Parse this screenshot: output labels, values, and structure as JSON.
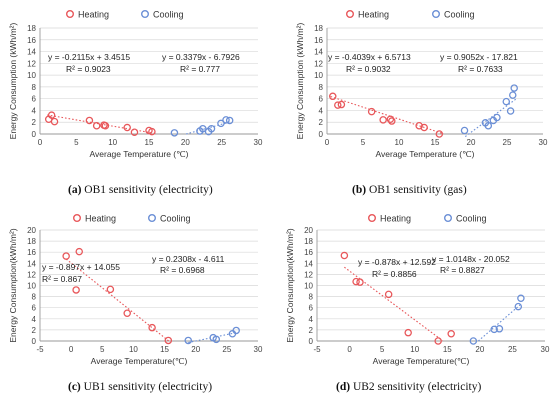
{
  "colors": {
    "heating": "#e8575a",
    "cooling": "#6b8fd6",
    "grid": "#d9d9d9",
    "axis": "#9a9a9a"
  },
  "chart_data": [
    {
      "type": "scatter",
      "id": "a",
      "caption_tag": "(a)",
      "caption_text": " OB1 sensitivity (electricity)",
      "xlabel": "Average Temperature (℃)",
      "ylabel": "Energy Consumption (kWh/m²)",
      "xlim": [
        0,
        30
      ],
      "xticks": [
        0,
        5,
        10,
        15,
        20,
        25,
        30
      ],
      "ylim": [
        0,
        18
      ],
      "yticks": [
        0,
        2,
        4,
        6,
        8,
        10,
        12,
        14,
        16,
        18
      ],
      "grid": true,
      "legend_position": "top",
      "series": [
        {
          "name": "Heating",
          "points": [
            [
              1.2,
              2.5
            ],
            [
              1.6,
              3.2
            ],
            [
              2.0,
              2.1
            ],
            [
              6.8,
              2.3
            ],
            [
              7.8,
              1.4
            ],
            [
              8.8,
              1.5
            ],
            [
              9.0,
              1.4
            ],
            [
              12.0,
              1.1
            ],
            [
              13.0,
              0.3
            ],
            [
              15.0,
              0.6
            ],
            [
              15.4,
              0.4
            ]
          ]
        },
        {
          "name": "Cooling",
          "points": [
            [
              18.5,
              0.2
            ],
            [
              22.0,
              0.5
            ],
            [
              22.4,
              0.9
            ],
            [
              23.2,
              0.4
            ],
            [
              23.6,
              0.9
            ],
            [
              24.9,
              1.8
            ],
            [
              25.6,
              2.4
            ],
            [
              26.1,
              2.3
            ]
          ]
        }
      ],
      "trendlines": [
        {
          "series": "Heating",
          "slope": -0.2115,
          "intercept": 3.4515,
          "x": [
            1,
            16
          ],
          "equation": "y = -0.2115x + 3.4515",
          "r2": "R² = 0.9023"
        },
        {
          "series": "Cooling",
          "slope": 0.3379,
          "intercept": -6.7926,
          "x": [
            20.1,
            26.3
          ],
          "equation": "y = 0.3379x - 6.7926",
          "r2": "R² = 0.777"
        }
      ]
    },
    {
      "type": "scatter",
      "id": "b",
      "caption_tag": "(b)",
      "caption_text": " OB1 sensitivity (gas)",
      "xlabel": "Average Temperature (℃)",
      "ylabel": "Energy Consumption (kWh/m²)",
      "xlim": [
        0,
        30
      ],
      "xticks": [
        0,
        5,
        10,
        15,
        20,
        25,
        30
      ],
      "ylim": [
        0,
        18
      ],
      "yticks": [
        0,
        2,
        4,
        6,
        8,
        10,
        12,
        14,
        16,
        18
      ],
      "grid": true,
      "legend_position": "top",
      "series": [
        {
          "name": "Heating",
          "points": [
            [
              0.8,
              6.4
            ],
            [
              1.5,
              4.9
            ],
            [
              2.0,
              5.0
            ],
            [
              6.2,
              3.8
            ],
            [
              7.8,
              2.4
            ],
            [
              8.8,
              2.5
            ],
            [
              9.0,
              2.2
            ],
            [
              12.8,
              1.4
            ],
            [
              13.5,
              1.1
            ],
            [
              15.6,
              0.0
            ]
          ]
        },
        {
          "name": "Cooling",
          "points": [
            [
              19.1,
              0.6
            ],
            [
              22.0,
              1.9
            ],
            [
              22.4,
              1.4
            ],
            [
              23.1,
              2.3
            ],
            [
              23.6,
              2.8
            ],
            [
              24.9,
              5.5
            ],
            [
              25.5,
              3.9
            ],
            [
              25.8,
              6.6
            ],
            [
              26.0,
              7.8
            ]
          ]
        }
      ],
      "trendlines": [
        {
          "series": "Heating",
          "slope": -0.4039,
          "intercept": 6.5713,
          "x": [
            0.5,
            16.2
          ],
          "equation": "y = -0.4039x + 6.5713",
          "r2": "R² = 0.9032"
        },
        {
          "series": "Cooling",
          "slope": 0.9052,
          "intercept": -17.821,
          "x": [
            19.2,
            26.3
          ],
          "equation": "y = 0.9052x - 17.821",
          "r2": "R² = 0.7633"
        }
      ]
    },
    {
      "type": "scatter",
      "id": "c",
      "caption_tag": "(c)",
      "caption_text": " UB1 sensitivity (electricity)",
      "xlabel": "Average Temperature(℃)",
      "ylabel": "Energy Consumption(kWh/m²)",
      "xlim": [
        -5,
        30
      ],
      "xticks": [
        -5,
        0,
        5,
        10,
        15,
        20,
        25,
        30
      ],
      "ylim": [
        0,
        20
      ],
      "yticks": [
        0,
        2,
        4,
        6,
        8,
        10,
        12,
        14,
        16,
        18,
        20
      ],
      "grid": true,
      "legend_position": "top",
      "series": [
        {
          "name": "Heating",
          "points": [
            [
              -0.8,
              15.3
            ],
            [
              0.8,
              9.2
            ],
            [
              1.3,
              16.1
            ],
            [
              6.3,
              9.3
            ],
            [
              9.0,
              5.0
            ],
            [
              13.0,
              2.4
            ],
            [
              15.6,
              0.1
            ]
          ]
        },
        {
          "name": "Cooling",
          "points": [
            [
              18.8,
              0.1
            ],
            [
              22.8,
              0.6
            ],
            [
              23.3,
              0.3
            ],
            [
              25.9,
              1.3
            ],
            [
              26.5,
              1.9
            ]
          ]
        }
      ],
      "trendlines": [
        {
          "series": "Heating",
          "slope": -0.897,
          "intercept": 14.055,
          "x": [
            -0.8,
            15.7
          ],
          "equation": "y = -0.897x + 14.055",
          "r2": "R² = 0.867"
        },
        {
          "series": "Cooling",
          "slope": 0.2308,
          "intercept": -4.611,
          "x": [
            18.8,
            26.6
          ],
          "equation": "y = 0.2308x - 4.611",
          "r2": "R² = 0.6968"
        }
      ]
    },
    {
      "type": "scatter",
      "id": "d",
      "caption_tag": "(d)",
      "caption_text": " UB2 sensitivity (electricity)",
      "xlabel": "Average Temperature(℃)",
      "ylabel": "Energy Consumption(kWh/m²)",
      "xlim": [
        -5,
        30
      ],
      "xticks": [
        -5,
        0,
        5,
        10,
        15,
        20,
        25,
        30
      ],
      "ylim": [
        0,
        20
      ],
      "yticks": [
        0,
        2,
        4,
        6,
        8,
        10,
        12,
        14,
        16,
        18,
        20
      ],
      "grid": true,
      "legend_position": "top",
      "series": [
        {
          "name": "Heating",
          "points": [
            [
              -0.8,
              15.4
            ],
            [
              1.0,
              10.7
            ],
            [
              1.6,
              10.6
            ],
            [
              6.0,
              8.4
            ],
            [
              9.0,
              1.5
            ],
            [
              13.6,
              0.0
            ],
            [
              15.6,
              1.3
            ]
          ]
        },
        {
          "name": "Cooling",
          "points": [
            [
              19.0,
              0.0
            ],
            [
              22.2,
              2.1
            ],
            [
              23.0,
              2.2
            ],
            [
              25.9,
              6.2
            ],
            [
              26.3,
              7.7
            ]
          ]
        }
      ],
      "trendlines": [
        {
          "series": "Heating",
          "slope": -0.878,
          "intercept": 12.592,
          "x": [
            -0.8,
            14.3
          ],
          "equation": "y = -0.878x + 12.592",
          "r2": "R² = 0.8856"
        },
        {
          "series": "Cooling",
          "slope": 1.0148,
          "intercept": -20.052,
          "x": [
            19.76,
            26.3
          ],
          "equation": "y = 1.0148x - 20.052",
          "r2": "R² = 0.8827"
        }
      ]
    }
  ]
}
